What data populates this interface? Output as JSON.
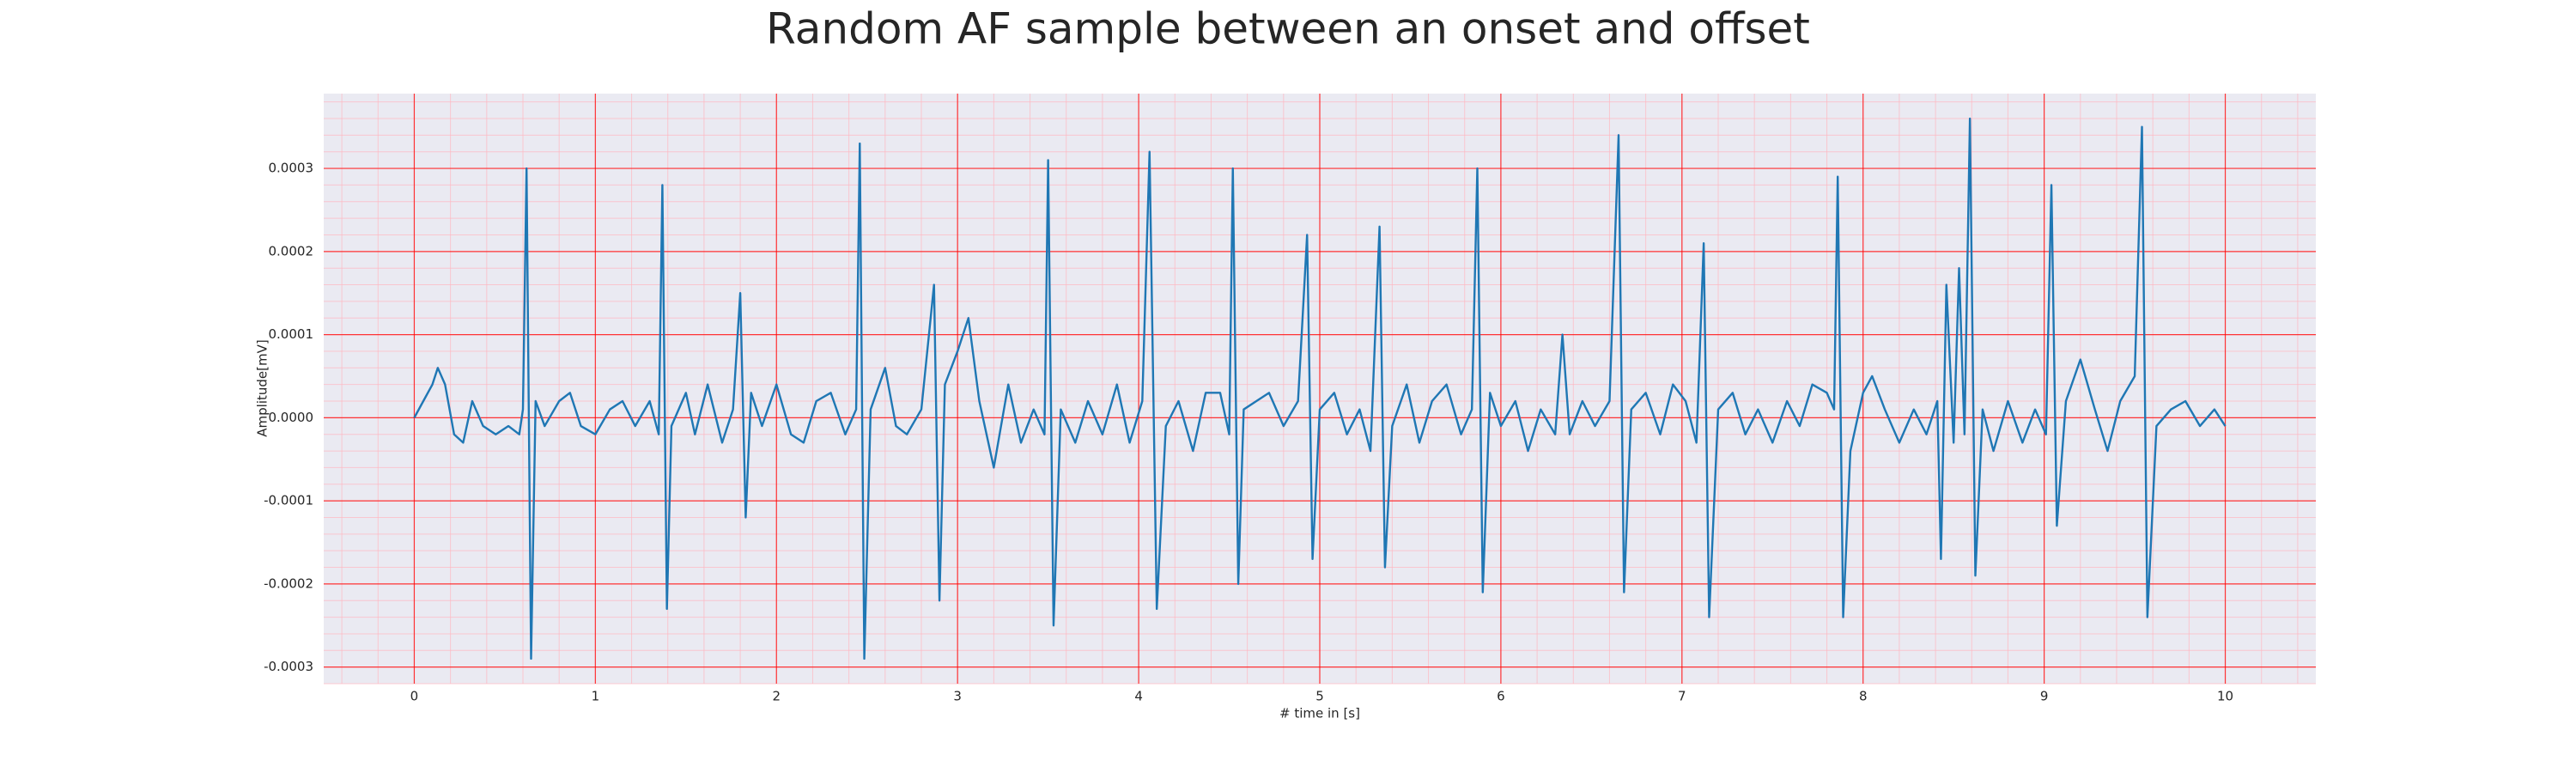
{
  "chart_data": {
    "type": "line",
    "title": "Random AF sample between an onset and offset",
    "xlabel": "# time in [s]",
    "ylabel": "Amplitude[mV]",
    "color": "#1f77b4",
    "grid": true,
    "grid_color": "#ff0000",
    "xlim": [
      -0.5,
      10.5
    ],
    "ylim": [
      -0.00032,
      0.00039
    ],
    "xticks": [
      0,
      1,
      2,
      3,
      4,
      5,
      6,
      7,
      8,
      9,
      10
    ],
    "yticks": [
      0.0003,
      0.0002,
      0.0001,
      {
        "value": 0,
        "label": "0.0000"
      },
      -0.0001,
      -0.0002,
      -0.0003
    ],
    "x": [
      0,
      0.05,
      0.1,
      0.13,
      0.17,
      0.22,
      0.27,
      0.32,
      0.38,
      0.45,
      0.52,
      0.58,
      0.6,
      0.62,
      0.645,
      0.67,
      0.72,
      0.8,
      0.86,
      0.92,
      1,
      1.08,
      1.15,
      1.22,
      1.3,
      1.35,
      1.37,
      1.395,
      1.42,
      1.5,
      1.55,
      1.62,
      1.7,
      1.76,
      1.8,
      1.83,
      1.86,
      1.92,
      2,
      2.08,
      2.15,
      2.22,
      2.3,
      2.38,
      2.44,
      2.46,
      2.485,
      2.52,
      2.6,
      2.66,
      2.72,
      2.8,
      2.87,
      2.9,
      2.93,
      3,
      3.06,
      3.12,
      3.2,
      3.28,
      3.35,
      3.42,
      3.48,
      3.5,
      3.53,
      3.57,
      3.65,
      3.72,
      3.8,
      3.88,
      3.95,
      4.02,
      4.06,
      4.1,
      4.15,
      4.22,
      4.3,
      4.37,
      4.45,
      4.5,
      4.52,
      4.55,
      4.58,
      4.65,
      4.72,
      4.8,
      4.88,
      4.93,
      4.96,
      5,
      5.08,
      5.15,
      5.22,
      5.28,
      5.33,
      5.36,
      5.4,
      5.48,
      5.55,
      5.62,
      5.7,
      5.78,
      5.84,
      5.87,
      5.9,
      5.94,
      6,
      6.08,
      6.15,
      6.22,
      6.3,
      6.34,
      6.38,
      6.45,
      6.52,
      6.6,
      6.65,
      6.68,
      6.72,
      6.8,
      6.88,
      6.95,
      7.02,
      7.08,
      7.12,
      7.15,
      7.2,
      7.28,
      7.35,
      7.42,
      7.5,
      7.58,
      7.65,
      7.72,
      7.8,
      7.84,
      7.86,
      7.89,
      7.93,
      8,
      8.05,
      8.12,
      8.2,
      8.28,
      8.35,
      8.41,
      8.43,
      8.46,
      8.5,
      8.53,
      8.56,
      8.59,
      8.62,
      8.66,
      8.72,
      8.8,
      8.88,
      8.95,
      9.01,
      9.04,
      9.07,
      9.12,
      9.2,
      9.28,
      9.35,
      9.42,
      9.5,
      9.54,
      9.57,
      9.62,
      9.7,
      9.78,
      9.86,
      9.94,
      10
    ],
    "values": [
      0,
      2e-05,
      4e-05,
      6e-05,
      4e-05,
      -2e-05,
      -3e-05,
      2e-05,
      -1e-05,
      -2e-05,
      -1e-05,
      -2e-05,
      1e-05,
      0.0003,
      -0.00029,
      2e-05,
      -1e-05,
      2e-05,
      3e-05,
      -1e-05,
      -2e-05,
      1e-05,
      2e-05,
      -1e-05,
      2e-05,
      -2e-05,
      0.00028,
      -0.00023,
      -1e-05,
      3e-05,
      -2e-05,
      4e-05,
      -3e-05,
      1e-05,
      0.00015,
      -0.00012,
      3e-05,
      -1e-05,
      4e-05,
      -2e-05,
      -3e-05,
      2e-05,
      3e-05,
      -2e-05,
      1e-05,
      0.00033,
      -0.00029,
      1e-05,
      6e-05,
      -1e-05,
      -2e-05,
      1e-05,
      0.00016,
      -0.00022,
      4e-05,
      8e-05,
      0.00012,
      2e-05,
      -6e-05,
      4e-05,
      -3e-05,
      1e-05,
      -2e-05,
      0.00031,
      -0.00025,
      1e-05,
      -3e-05,
      2e-05,
      -2e-05,
      4e-05,
      -3e-05,
      2e-05,
      0.00032,
      -0.00023,
      -1e-05,
      2e-05,
      -4e-05,
      3e-05,
      3e-05,
      -2e-05,
      0.0003,
      -0.0002,
      1e-05,
      2e-05,
      3e-05,
      -1e-05,
      2e-05,
      0.00022,
      -0.00017,
      1e-05,
      3e-05,
      -2e-05,
      1e-05,
      -4e-05,
      0.00023,
      -0.00018,
      -1e-05,
      4e-05,
      -3e-05,
      2e-05,
      4e-05,
      -2e-05,
      1e-05,
      0.0003,
      -0.00021,
      3e-05,
      -1e-05,
      2e-05,
      -4e-05,
      1e-05,
      -2e-05,
      0.0001,
      -2e-05,
      2e-05,
      -1e-05,
      2e-05,
      0.00034,
      -0.00021,
      1e-05,
      3e-05,
      -2e-05,
      4e-05,
      2e-05,
      -3e-05,
      0.00021,
      -0.00024,
      1e-05,
      3e-05,
      -2e-05,
      1e-05,
      -3e-05,
      2e-05,
      -1e-05,
      4e-05,
      3e-05,
      1e-05,
      0.00029,
      -0.00024,
      -4e-05,
      3e-05,
      5e-05,
      1e-05,
      -3e-05,
      1e-05,
      -2e-05,
      2e-05,
      -0.00017,
      0.00016,
      -3e-05,
      0.00018,
      -2e-05,
      0.00036,
      -0.00019,
      1e-05,
      -4e-05,
      2e-05,
      -3e-05,
      1e-05,
      -2e-05,
      0.00028,
      -0.00013,
      2e-05,
      7e-05,
      1e-05,
      -4e-05,
      2e-05,
      5e-05,
      0.00035,
      -0.00024,
      -1e-05,
      1e-05,
      2e-05,
      -1e-05,
      1e-05,
      -1e-05
    ]
  }
}
